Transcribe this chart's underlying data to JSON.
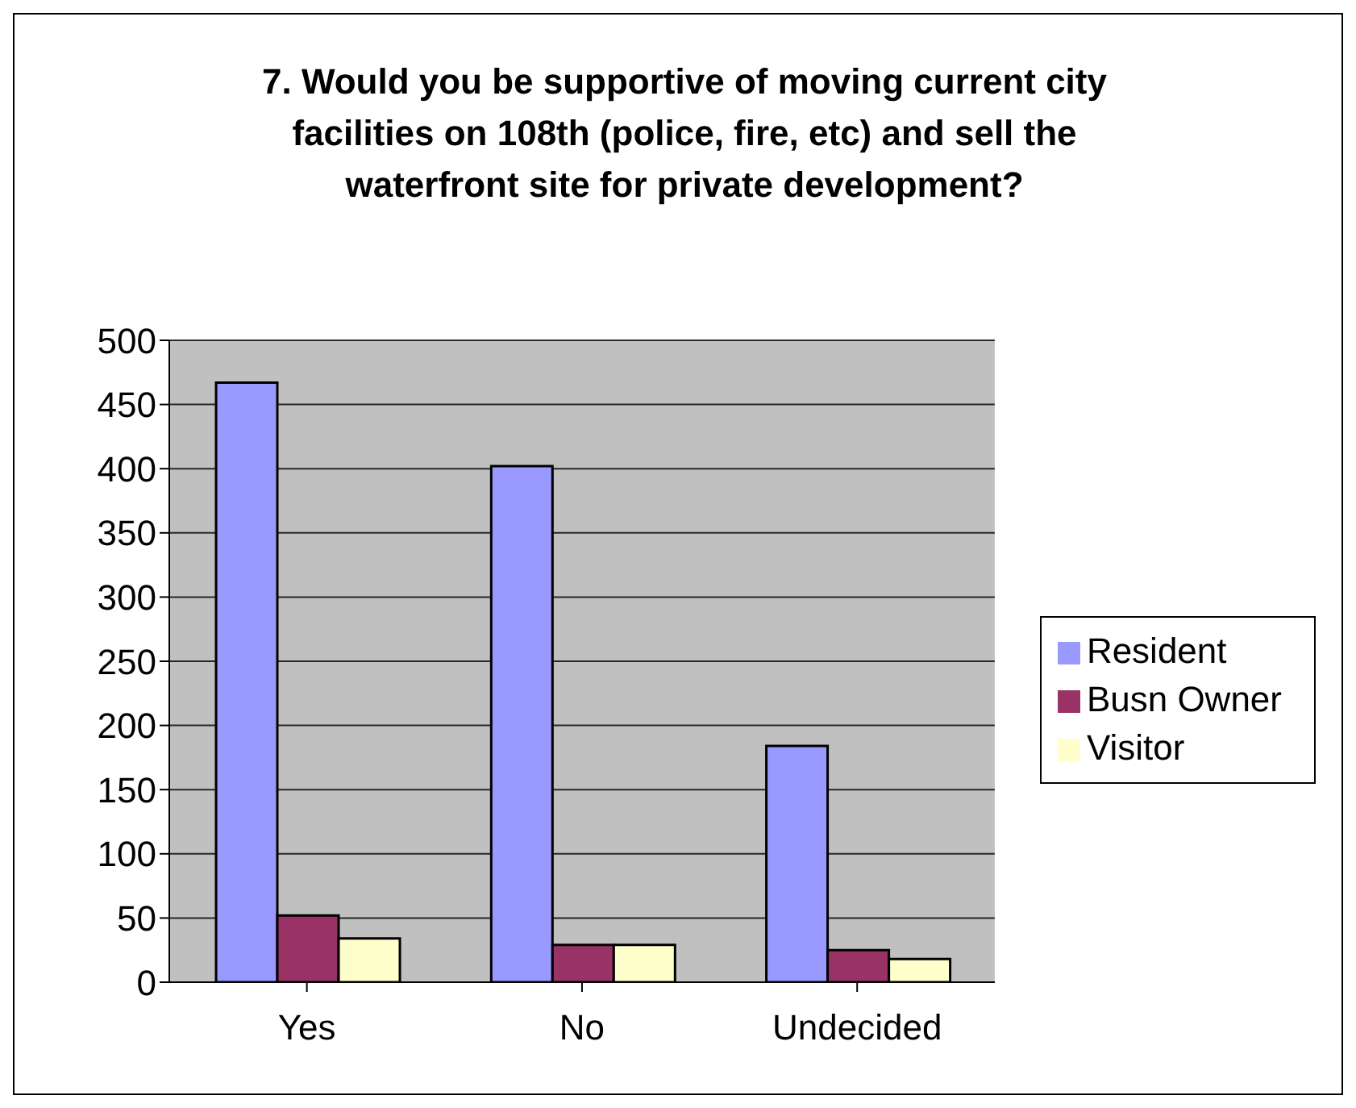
{
  "chart_data": {
    "type": "bar",
    "title": "7. Would you be supportive of moving current city facilities on 108th (police, fire, etc) and sell the waterfront site for private development?",
    "categories": [
      "Yes",
      "No",
      "Undecided"
    ],
    "series": [
      {
        "name": "Resident",
        "color": "#9999ff",
        "values": [
          467,
          402,
          184
        ]
      },
      {
        "name": "Busn Owner",
        "color": "#993366",
        "values": [
          52,
          29,
          25
        ]
      },
      {
        "name": "Visitor",
        "color": "#ffffcc",
        "values": [
          34,
          29,
          18
        ]
      }
    ],
    "ylim": [
      0,
      500
    ],
    "yticks": [
      0,
      50,
      100,
      150,
      200,
      250,
      300,
      350,
      400,
      450,
      500
    ],
    "grid": "y",
    "legend": "right"
  }
}
